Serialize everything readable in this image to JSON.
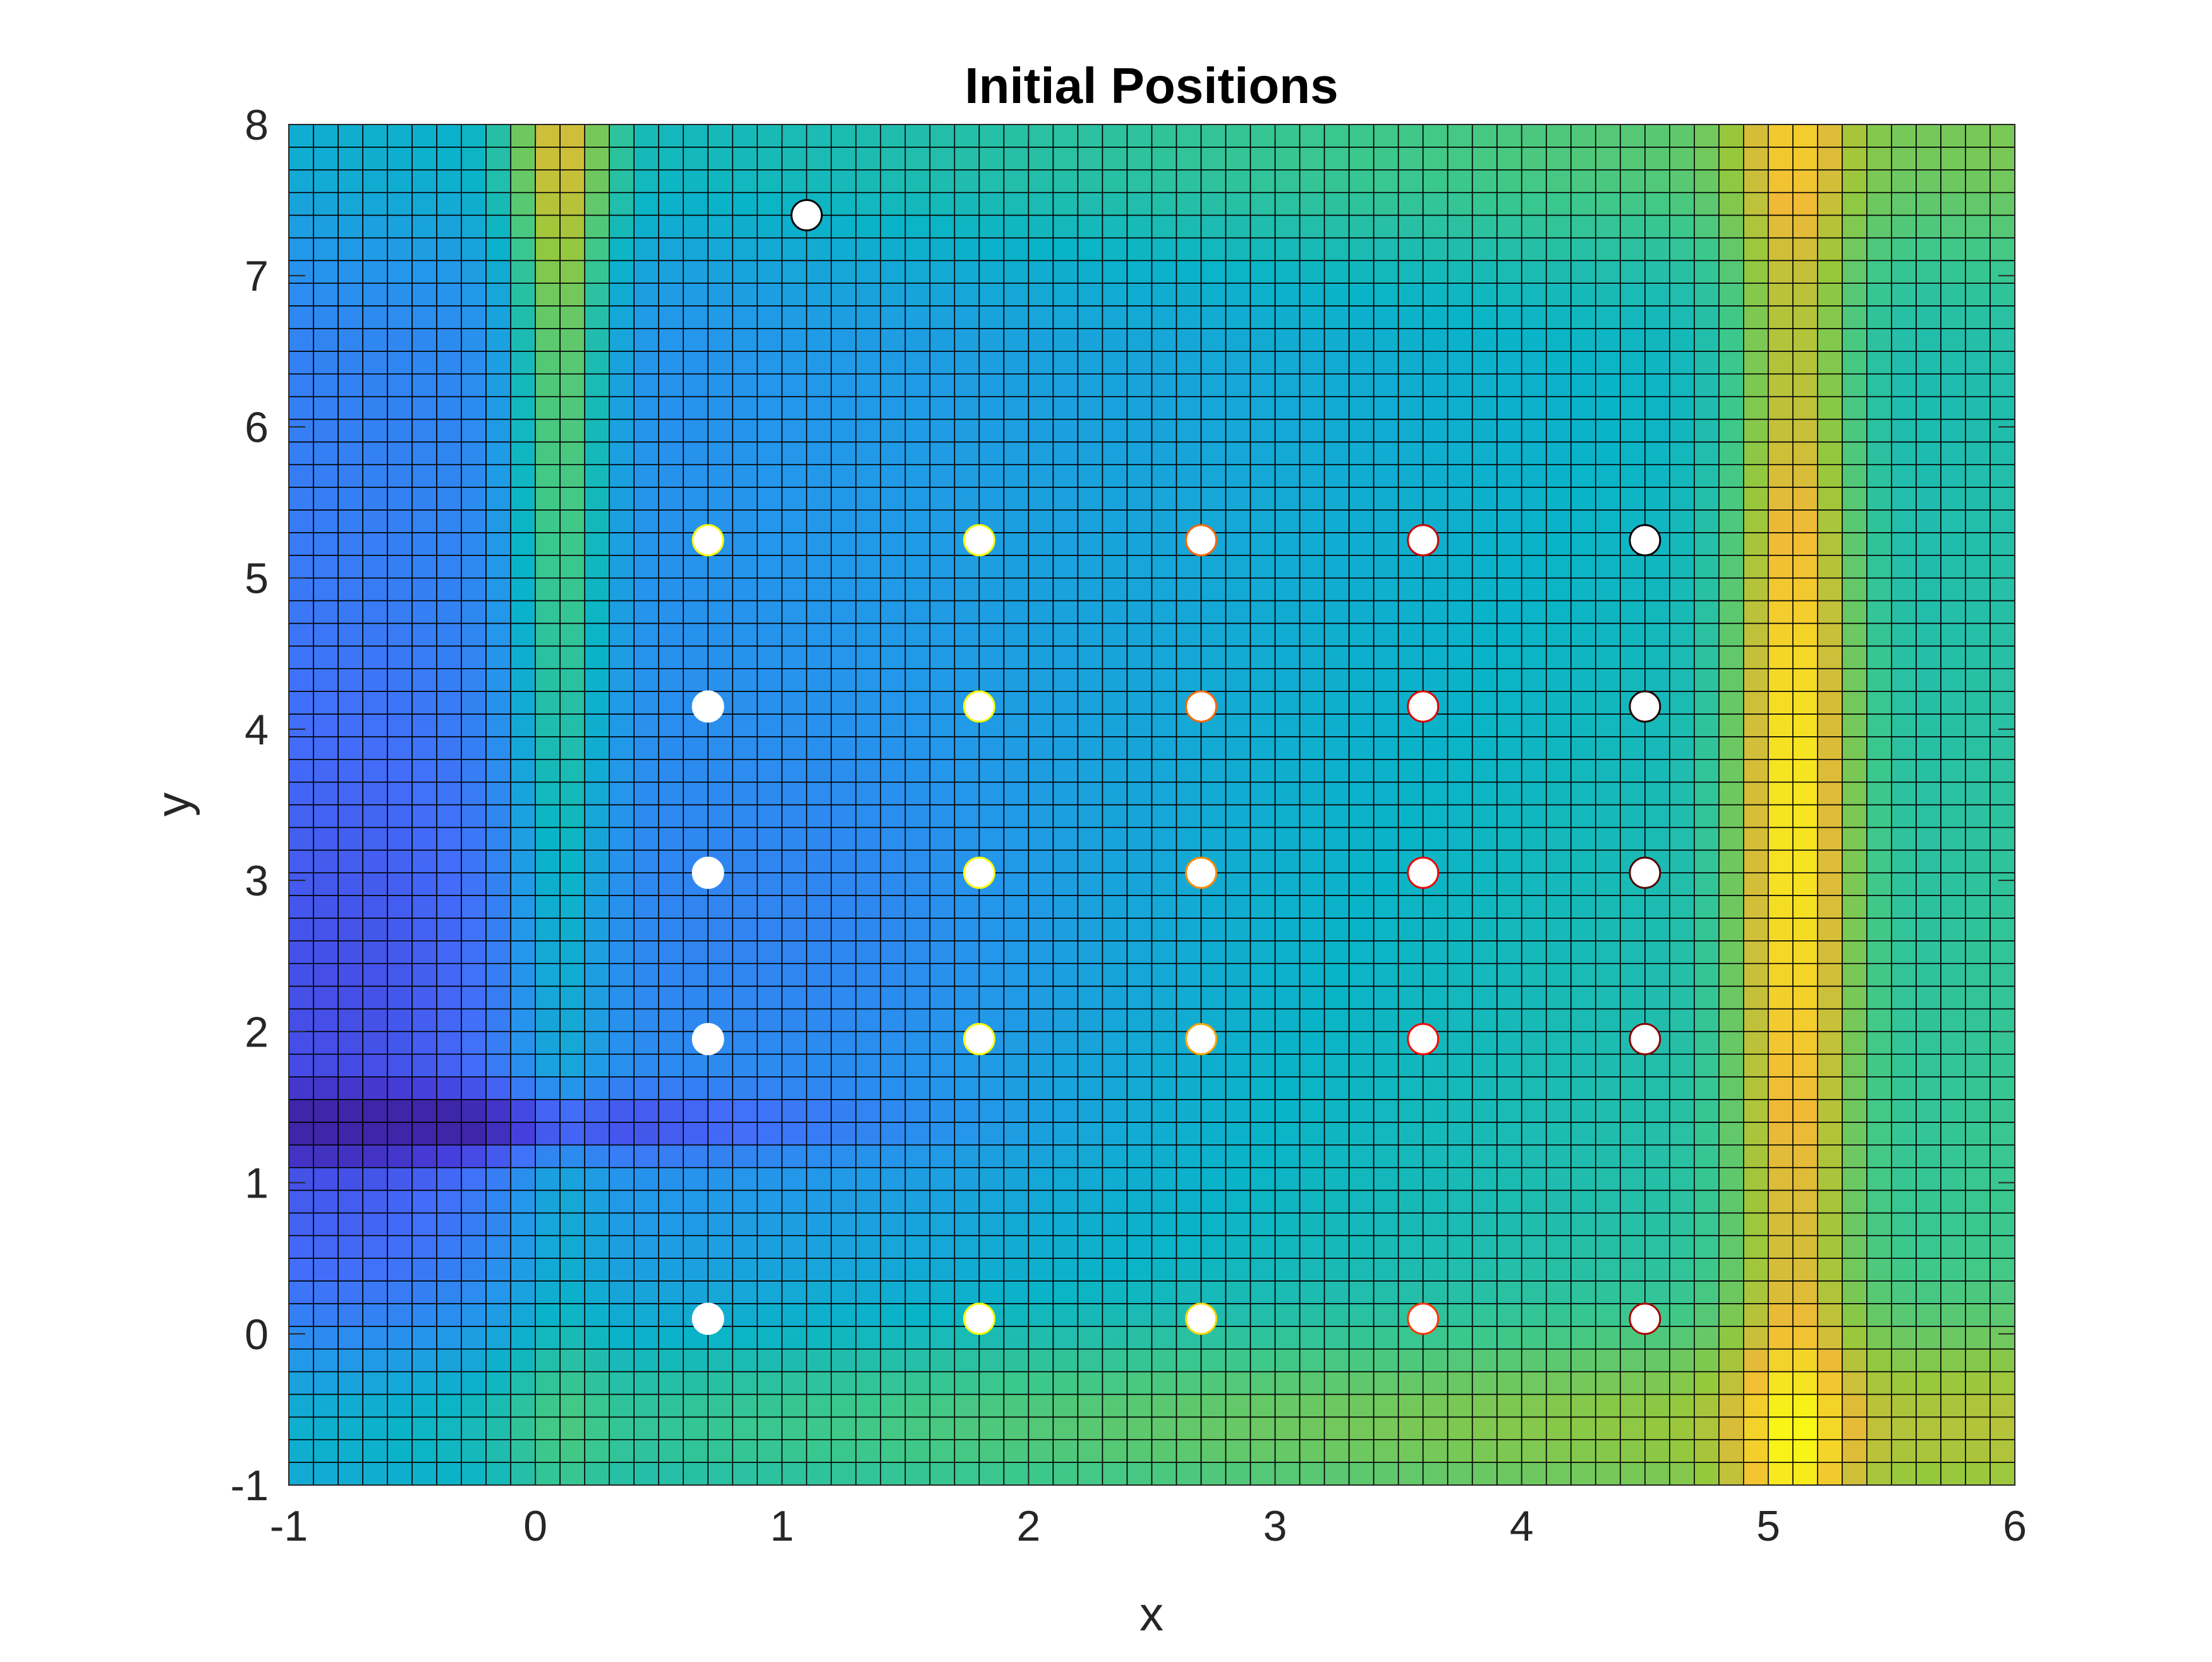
{
  "chart_data": {
    "type": "heatmap",
    "title": "Initial Positions",
    "xlabel": "x",
    "ylabel": "y",
    "xlim": [
      -1,
      6
    ],
    "ylim": [
      -1,
      8
    ],
    "xticks": [
      -1,
      0,
      1,
      2,
      3,
      4,
      5,
      6
    ],
    "yticks": [
      -1,
      0,
      1,
      2,
      3,
      4,
      5,
      6,
      7,
      8
    ],
    "xtick_labels": [
      "-1",
      "0",
      "1",
      "2",
      "3",
      "4",
      "5",
      "6"
    ],
    "ytick_labels": [
      "-1",
      "0",
      "1",
      "2",
      "3",
      "4",
      "5",
      "6",
      "7",
      "8"
    ],
    "grid": {
      "x_step": 0.1,
      "y_step": 0.15,
      "cell_edges": true
    },
    "colormap": "parula",
    "points": [
      {
        "x": 0.7,
        "y": 0.1,
        "edge": "#ffffff"
      },
      {
        "x": 0.7,
        "y": 1.95,
        "edge": "#ffffff"
      },
      {
        "x": 0.7,
        "y": 3.05,
        "edge": "#ffffff"
      },
      {
        "x": 0.7,
        "y": 4.15,
        "edge": "#ffffff"
      },
      {
        "x": 0.7,
        "y": 5.25,
        "edge": "#ffff00"
      },
      {
        "x": 1.8,
        "y": 0.1,
        "edge": "#ffff00"
      },
      {
        "x": 1.8,
        "y": 1.95,
        "edge": "#ffff00"
      },
      {
        "x": 1.8,
        "y": 3.05,
        "edge": "#ffff00"
      },
      {
        "x": 1.8,
        "y": 4.15,
        "edge": "#ffff00"
      },
      {
        "x": 1.8,
        "y": 5.25,
        "edge": "#ffff00"
      },
      {
        "x": 2.7,
        "y": 0.1,
        "edge": "#ffd700"
      },
      {
        "x": 2.7,
        "y": 1.95,
        "edge": "#ffa500"
      },
      {
        "x": 2.7,
        "y": 3.05,
        "edge": "#ff8c00"
      },
      {
        "x": 2.7,
        "y": 4.15,
        "edge": "#ff6600"
      },
      {
        "x": 2.7,
        "y": 5.25,
        "edge": "#ff6600"
      },
      {
        "x": 3.6,
        "y": 0.1,
        "edge": "#ff3300"
      },
      {
        "x": 3.6,
        "y": 1.95,
        "edge": "#ff0000"
      },
      {
        "x": 3.6,
        "y": 3.05,
        "edge": "#ee0000"
      },
      {
        "x": 3.6,
        "y": 4.15,
        "edge": "#dd0000"
      },
      {
        "x": 3.6,
        "y": 5.25,
        "edge": "#cc0000"
      },
      {
        "x": 4.5,
        "y": 0.1,
        "edge": "#aa0000"
      },
      {
        "x": 4.5,
        "y": 1.95,
        "edge": "#880000"
      },
      {
        "x": 4.5,
        "y": 3.05,
        "edge": "#550000"
      },
      {
        "x": 4.5,
        "y": 4.15,
        "edge": "#220000"
      },
      {
        "x": 4.5,
        "y": 5.25,
        "edge": "#000000"
      },
      {
        "x": 1.1,
        "y": 7.4,
        "edge": "#000000"
      }
    ]
  }
}
